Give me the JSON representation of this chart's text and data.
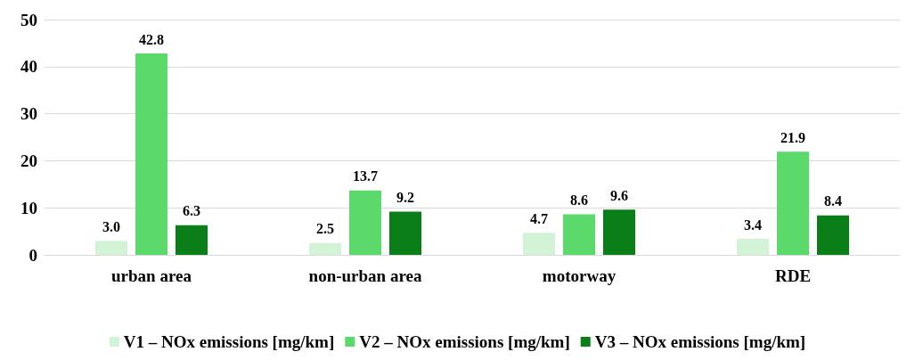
{
  "chart_data": {
    "type": "bar",
    "categories": [
      "urban area",
      "non-urban area",
      "motorway",
      "RDE"
    ],
    "series": [
      {
        "name": "V1 – NOx emissions [mg/km]",
        "color": "#d3f3d6",
        "values": [
          3.0,
          2.5,
          4.7,
          3.4
        ]
      },
      {
        "name": "V2 – NOx emissions [mg/km]",
        "color": "#5cd96b",
        "values": [
          42.8,
          13.7,
          8.6,
          21.9
        ]
      },
      {
        "name": "V3 – NOx emissions [mg/km]",
        "color": "#0a7e17",
        "values": [
          6.3,
          9.2,
          9.6,
          8.4
        ]
      }
    ],
    "ylim": [
      0,
      50
    ],
    "yticks": [
      0,
      10,
      20,
      30,
      40,
      50
    ],
    "grid": "y",
    "legend": "bottom",
    "value_labels": [
      [
        "3.0",
        "2.5",
        "4.7",
        "3.4"
      ],
      [
        "42.8",
        "13.7",
        "8.6",
        "21.9"
      ],
      [
        "6.3",
        "9.2",
        "9.6",
        "8.4"
      ]
    ]
  }
}
